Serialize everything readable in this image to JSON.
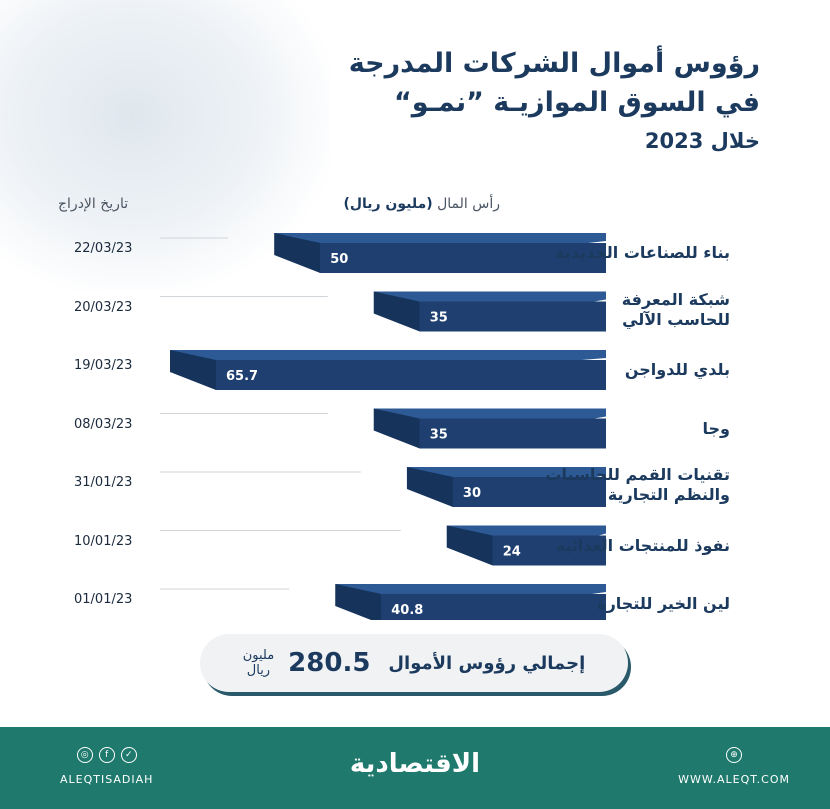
{
  "title": {
    "line1": "رؤوس أموال الشركات المدرجة",
    "line2": "في السوق الموازيـة ”نمـو“",
    "sub": "خلال 2023"
  },
  "headers": {
    "date": "تاريخ الإدراج",
    "capital_prefix": "رأس المال",
    "capital_unit": "(مليون ريال)"
  },
  "chart_data": {
    "type": "bar",
    "orientation": "horizontal",
    "categories": [
      "بناء للصناعات الحديدية",
      "شبكة المعرفة للحاسب الآلي",
      "بلدي للدواجن",
      "وجا",
      "تقنيات القمم للحاسبات والنظم التجارية",
      "نفوذ للمنتجات الغذائية",
      "لين الخير للتجارة"
    ],
    "values": [
      50,
      35,
      65.7,
      35,
      30,
      24,
      40.8
    ],
    "value_labels": [
      "50",
      "35",
      "65.7",
      "35",
      "30",
      "24",
      "40.8"
    ],
    "dates": [
      "22/03/23",
      "20/03/23",
      "19/03/23",
      "08/03/23",
      "31/01/23",
      "10/01/23",
      "01/01/23"
    ],
    "label_lines": [
      [
        "بناء للصناعات الحديدية"
      ],
      [
        "شبكة المعرفة",
        "للحاسب الآلي"
      ],
      [
        "بلدي للدواجن"
      ],
      [
        "وجا"
      ],
      [
        "تقنيات القمم للحاسبات",
        "والنظم التجارية"
      ],
      [
        "نفوذ للمنتجات الغذائية"
      ],
      [
        "لين الخير للتجارة"
      ]
    ],
    "xlim": [
      0,
      65.7
    ],
    "bar_color": "#1e3f70",
    "bar_top_color": "#2d5a94"
  },
  "total": {
    "label": "إجمالي رؤوس الأموال",
    "value": "280.5",
    "unit_line1": "مليون",
    "unit_line2": "ريال"
  },
  "footer": {
    "logo": "الاقتصادية",
    "left_handle": "ALEQTISADIAH",
    "right_site": "WWW.ALEQT.COM"
  }
}
